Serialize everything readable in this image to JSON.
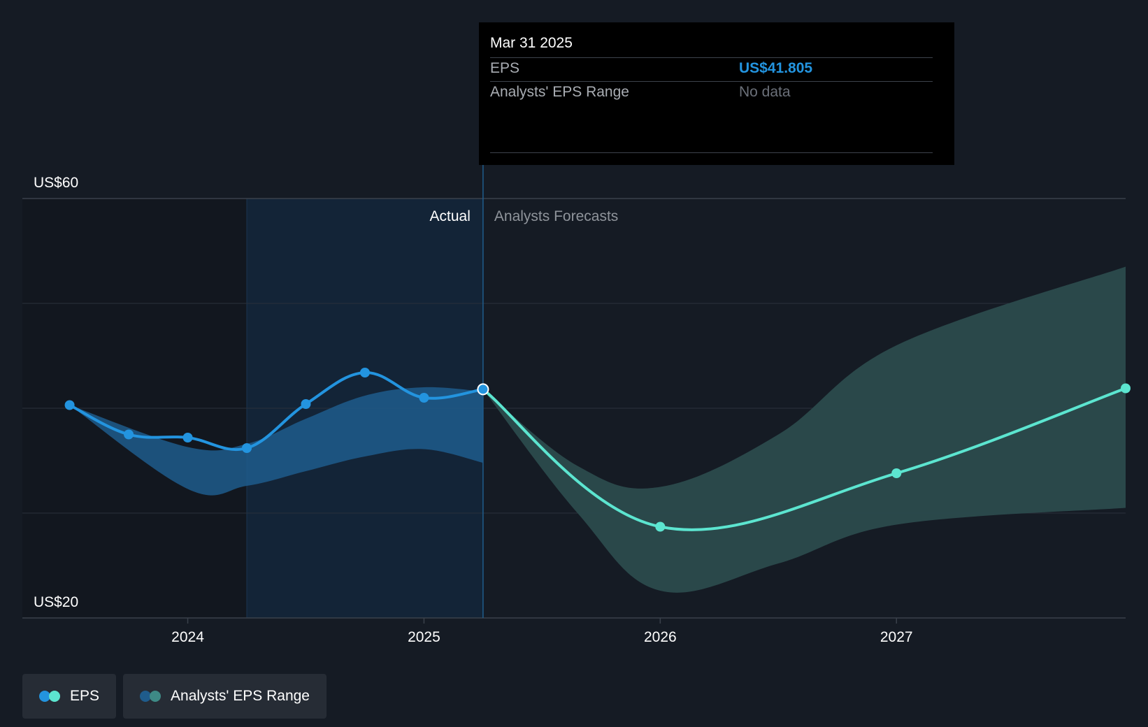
{
  "tooltip": {
    "date": "Mar 31 2025",
    "eps_label": "EPS",
    "eps_value": "US$41.805",
    "range_label": "Analysts' EPS Range",
    "range_value": "No data"
  },
  "legend": {
    "eps_label": "EPS",
    "range_label": "Analysts' EPS Range"
  },
  "colors": {
    "background": "#151b24",
    "actual_line": "#2394df",
    "forecast_line": "#5ce5d0",
    "actual_band": "#1f5c8c",
    "forecast_band": "#2b4b4d",
    "actual_shade": "#132437"
  },
  "chart_data": {
    "type": "line",
    "y_axis": {
      "min": 20,
      "max": 60,
      "labels": [
        "US$60",
        "US$20"
      ]
    },
    "x_axis": {
      "min": 2023.3,
      "max": 2027.97,
      "ticks": [
        "2024",
        "2025",
        "2026",
        "2027"
      ]
    },
    "sections": {
      "actual_label": "Actual",
      "forecast_label": "Analysts Forecasts",
      "divider_x": 2025.25
    },
    "series": [
      {
        "name": "EPS",
        "kind": "actual",
        "points": [
          {
            "x": 2023.5,
            "y": 40.3
          },
          {
            "x": 2023.75,
            "y": 37.5
          },
          {
            "x": 2024.0,
            "y": 37.2
          },
          {
            "x": 2024.25,
            "y": 36.2
          },
          {
            "x": 2024.5,
            "y": 40.4
          },
          {
            "x": 2024.75,
            "y": 43.4
          },
          {
            "x": 2025.0,
            "y": 41.0
          },
          {
            "x": 2025.25,
            "y": 41.805
          }
        ]
      },
      {
        "name": "EPS",
        "kind": "forecast",
        "points": [
          {
            "x": 2025.25,
            "y": 41.805
          },
          {
            "x": 2026.0,
            "y": 28.7
          },
          {
            "x": 2027.0,
            "y": 33.8
          },
          {
            "x": 2027.97,
            "y": 41.9
          }
        ]
      }
    ],
    "bands": [
      {
        "name": "Analysts' EPS Range",
        "kind": "actual",
        "upper": [
          {
            "x": 2023.5,
            "y": 40.3
          },
          {
            "x": 2024.0,
            "y": 36.3
          },
          {
            "x": 2024.25,
            "y": 36.6
          },
          {
            "x": 2024.5,
            "y": 39.0
          },
          {
            "x": 2024.75,
            "y": 41.2
          },
          {
            "x": 2025.0,
            "y": 42.0
          },
          {
            "x": 2025.25,
            "y": 41.6
          }
        ],
        "lower": [
          {
            "x": 2023.5,
            "y": 40.3
          },
          {
            "x": 2024.0,
            "y": 32.3
          },
          {
            "x": 2024.25,
            "y": 32.6
          },
          {
            "x": 2024.5,
            "y": 34.0
          },
          {
            "x": 2024.75,
            "y": 35.4
          },
          {
            "x": 2025.0,
            "y": 36.1
          },
          {
            "x": 2025.25,
            "y": 34.8
          }
        ]
      },
      {
        "name": "Analysts' EPS Range",
        "kind": "forecast",
        "upper": [
          {
            "x": 2025.25,
            "y": 41.805
          },
          {
            "x": 2025.65,
            "y": 34.5
          },
          {
            "x": 2026.0,
            "y": 32.5
          },
          {
            "x": 2026.5,
            "y": 37.5
          },
          {
            "x": 2027.0,
            "y": 46.0
          },
          {
            "x": 2027.97,
            "y": 53.5
          }
        ],
        "lower": [
          {
            "x": 2025.25,
            "y": 41.805
          },
          {
            "x": 2025.65,
            "y": 30.0
          },
          {
            "x": 2026.0,
            "y": 22.6
          },
          {
            "x": 2026.5,
            "y": 25.2
          },
          {
            "x": 2027.0,
            "y": 28.9
          },
          {
            "x": 2027.97,
            "y": 30.5
          }
        ]
      }
    ]
  }
}
